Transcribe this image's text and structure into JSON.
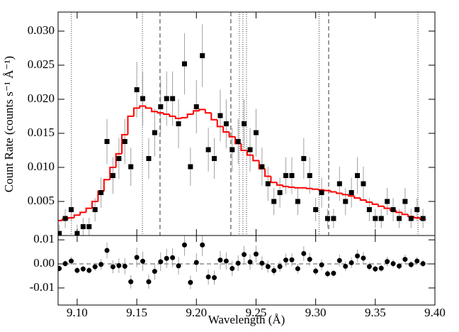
{
  "chart_data": [
    {
      "type": "scatter",
      "ylabel": "Count Rate (counts s⁻¹ Å⁻¹)",
      "xlim": [
        9.084,
        9.4
      ],
      "ylim": [
        0,
        0.0328
      ],
      "yticks": [
        0.005,
        {
          "value": 0.01,
          "label": "0.010"
        },
        0.015,
        {
          "value": 0.02,
          "label": "0.020"
        },
        0.025,
        {
          "value": 0.03,
          "label": "0.030"
        }
      ],
      "x": [
        9.085,
        9.09,
        9.095,
        9.1,
        9.105,
        9.11,
        9.115,
        9.12,
        9.125,
        9.13,
        9.135,
        9.14,
        9.145,
        9.15,
        9.155,
        9.16,
        9.165,
        9.17,
        9.175,
        9.18,
        9.185,
        9.19,
        9.195,
        9.2,
        9.205,
        9.21,
        9.215,
        9.22,
        9.225,
        9.23,
        9.235,
        9.24,
        9.245,
        9.25,
        9.255,
        9.26,
        9.265,
        9.27,
        9.275,
        9.28,
        9.285,
        9.29,
        9.295,
        9.3,
        9.305,
        9.31,
        9.315,
        9.32,
        9.325,
        9.33,
        9.335,
        9.34,
        9.345,
        9.35,
        9.355,
        9.36,
        9.365,
        9.37,
        9.375,
        9.38,
        9.385,
        9.39
      ],
      "values": [
        0.0003,
        0.0025,
        0.0038,
        0.0003,
        0.0013,
        0.0013,
        0.0038,
        0.0063,
        0.0138,
        0.0088,
        0.0113,
        0.0138,
        0.0101,
        0.0214,
        0.0201,
        0.0113,
        0.0151,
        0.0189,
        0.0201,
        0.0201,
        0.0164,
        0.0252,
        0.0101,
        0.0189,
        0.0264,
        0.0126,
        0.0113,
        0.0176,
        0.0164,
        0.0126,
        0.0138,
        0.0164,
        0.0126,
        0.0151,
        0.0101,
        0.0076,
        0.005,
        0.0063,
        0.0088,
        0.0088,
        0.005,
        0.0113,
        0.0088,
        0.0038,
        0.0063,
        0.0025,
        0.0025,
        0.0076,
        0.005,
        0.0063,
        0.0088,
        0.0076,
        0.0038,
        0.0025,
        0.0025,
        0.005,
        0.0038,
        0.0025,
        0.005,
        0.0025,
        0.0038,
        0.0025
      ],
      "errors": [
        0.0013,
        0.0014,
        0.0017,
        0.0013,
        0.0013,
        0.0013,
        0.0017,
        0.0022,
        0.0033,
        0.0027,
        0.003,
        0.0033,
        0.0028,
        0.0041,
        0.004,
        0.003,
        0.0035,
        0.0039,
        0.004,
        0.004,
        0.0036,
        0.0045,
        0.0028,
        0.0039,
        0.0046,
        0.0032,
        0.003,
        0.0038,
        0.0036,
        0.0032,
        0.0033,
        0.0036,
        0.0032,
        0.0035,
        0.0028,
        0.0025,
        0.002,
        0.0022,
        0.0027,
        0.0027,
        0.002,
        0.003,
        0.0027,
        0.0017,
        0.0022,
        0.0014,
        0.0014,
        0.0025,
        0.002,
        0.0022,
        0.0027,
        0.0025,
        0.0017,
        0.0014,
        0.0014,
        0.002,
        0.0017,
        0.0014,
        0.002,
        0.0014,
        0.0017,
        0.0014
      ],
      "model": [
        0.0022,
        0.0024,
        0.0026,
        0.003,
        0.0034,
        0.004,
        0.005,
        0.0065,
        0.0082,
        0.01,
        0.012,
        0.0148,
        0.0175,
        0.0187,
        0.019,
        0.0187,
        0.0182,
        0.018,
        0.0178,
        0.0175,
        0.0172,
        0.0173,
        0.0178,
        0.0183,
        0.0185,
        0.018,
        0.017,
        0.016,
        0.0152,
        0.0145,
        0.0135,
        0.0125,
        0.0118,
        0.011,
        0.0098,
        0.0087,
        0.0078,
        0.0074,
        0.0072,
        0.0071,
        0.007,
        0.007,
        0.0069,
        0.0068,
        0.0067,
        0.0066,
        0.0064,
        0.0062,
        0.006,
        0.0058,
        0.0055,
        0.0052,
        0.0049,
        0.0046,
        0.0043,
        0.004,
        0.0037,
        0.0034,
        0.0031,
        0.0028,
        0.0026,
        0.0024
      ],
      "model_color": "#ff0000",
      "point_color": "#000000",
      "error_color": "#a0a0a0",
      "dotted_lines": [
        9.0952,
        9.1547,
        9.236,
        9.239,
        9.242,
        9.3028,
        9.3858
      ],
      "dashed_lines": [
        9.1695,
        9.2289,
        9.3109
      ]
    },
    {
      "type": "scatter",
      "xlabel": "Wavelength (Å)",
      "xlim": [
        9.084,
        9.4
      ],
      "ylim": [
        -0.0171,
        0.0118
      ],
      "yticks": [
        0.01,
        {
          "value": 0.0,
          "label": "0.00"
        },
        -0.01
      ],
      "xticks": [
        {
          "value": 9.1,
          "label": "9.10"
        },
        9.15,
        {
          "value": 9.2,
          "label": "9.20"
        },
        9.25,
        {
          "value": 9.3,
          "label": "9.30"
        },
        9.35,
        {
          "value": 9.4,
          "label": "9.40"
        }
      ],
      "values": [
        -0.0019,
        0.0001,
        0.0012,
        -0.0027,
        -0.0021,
        -0.0027,
        -0.0012,
        -0.0002,
        0.0056,
        -0.0012,
        -0.0007,
        -0.001,
        -0.0074,
        0.0027,
        0.0011,
        -0.0074,
        -0.0031,
        0.0009,
        0.0023,
        0.0026,
        -0.0008,
        0.0079,
        -0.0077,
        0.0006,
        0.0079,
        -0.0054,
        -0.0057,
        0.0016,
        0.0012,
        -0.0019,
        0.0003,
        0.0039,
        0.0008,
        0.0041,
        0.0003,
        -0.0011,
        -0.0028,
        -0.0011,
        0.0016,
        0.0017,
        -0.002,
        0.0043,
        0.0019,
        -0.003,
        -0.0004,
        -0.0041,
        -0.0039,
        0.0014,
        -0.001,
        0.0005,
        0.0033,
        0.0024,
        -0.0011,
        -0.0021,
        -0.0018,
        0.001,
        0.0001,
        -0.0009,
        0.0019,
        -0.0003,
        0.0012,
        0.0001
      ],
      "zero_line": true
    }
  ]
}
